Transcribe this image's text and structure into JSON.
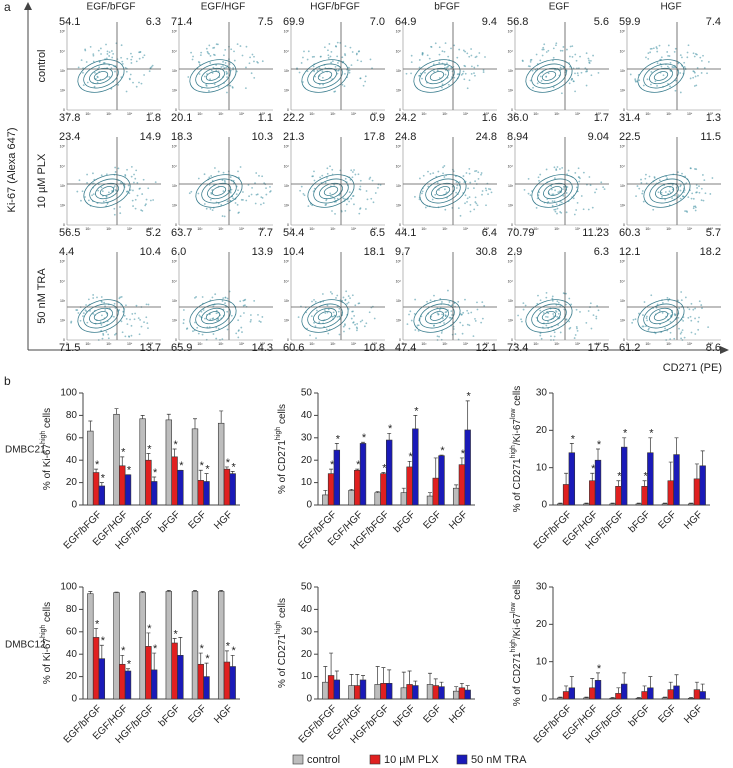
{
  "panels": [
    "a",
    "b"
  ],
  "significance_mark": "*",
  "panel_rows": [
    "DMBC21",
    "DMBC12"
  ],
  "legend": [
    {
      "name": "control",
      "color": "#bdbdbd"
    },
    {
      "name": "10 µM PLX",
      "color": "#e02020"
    },
    {
      "name": "50 nM TRA",
      "color": "#1a1ab8"
    }
  ],
  "flow": {
    "y_label": "Ki-67 (Alexa 647)",
    "x_label": "CD271 (PE)",
    "tick_labels": [
      "0",
      "10²",
      "10³",
      "10⁴",
      "10⁵"
    ],
    "columns": [
      "EGF/bFGF",
      "EGF/HGF",
      "HGF/bFGF",
      "bFGF",
      "EGF",
      "HGF"
    ],
    "rows": [
      {
        "label": "control",
        "quadrants": [
          [
            "54.1",
            "6.3",
            "37.8",
            "1.8"
          ],
          [
            "71.4",
            "7.5",
            "20.1",
            "1.1"
          ],
          [
            "69.9",
            "7.0",
            "22.2",
            "0.9"
          ],
          [
            "64.9",
            "9.4",
            "24.2",
            "1.6"
          ],
          [
            "56.8",
            "5.6",
            "36.0",
            "1.7"
          ],
          [
            "59.9",
            "7.4",
            "31.4",
            "1.3"
          ]
        ]
      },
      {
        "label": "10 µM PLX",
        "quadrants": [
          [
            "23.4",
            "14.9",
            "56.5",
            "5.2"
          ],
          [
            "18.3",
            "10.3",
            "63.7",
            "7.7"
          ],
          [
            "21.3",
            "17.8",
            "54.4",
            "6.5"
          ],
          [
            "24.8",
            "24.8",
            "44.1",
            "6.4"
          ],
          [
            "8.94",
            "9.04",
            "70.79",
            "11.23"
          ],
          [
            "22.5",
            "11.5",
            "60.3",
            "5.7"
          ]
        ]
      },
      {
        "label": "50 nM TRA",
        "quadrants": [
          [
            "4.4",
            "10.4",
            "71.5",
            "13.7"
          ],
          [
            "6.0",
            "13.9",
            "65.9",
            "14.3"
          ],
          [
            "10.4",
            "18.1",
            "60.6",
            "10.8"
          ],
          [
            "9.7",
            "30.8",
            "47.4",
            "12.1"
          ],
          [
            "2.9",
            "6.3",
            "73.4",
            "17.5"
          ],
          [
            "12.1",
            "18.2",
            "61.2",
            "8.6"
          ]
        ]
      }
    ]
  },
  "chart_data": [
    {
      "type": "bar",
      "ylabel": [
        {
          "text": "% of Ki-67"
        },
        {
          "text": "high",
          "sup": true
        },
        {
          "text": " cells"
        }
      ],
      "categories": [
        "EGF/bFGF",
        "EGF/HGF",
        "HGF/bFGF",
        "bFGF",
        "EGF",
        "HGF"
      ],
      "ylim": [
        0,
        100
      ],
      "yticks": [
        0,
        20,
        40,
        60,
        80,
        100
      ],
      "series": [
        {
          "values": [
            66,
            81,
            77,
            76,
            68,
            73
          ],
          "errors": [
            9,
            5,
            3,
            5,
            9,
            11
          ],
          "significant": [
            false,
            false,
            false,
            false,
            false,
            false
          ]
        },
        {
          "values": [
            29,
            35,
            40,
            43,
            22,
            32
          ],
          "errors": [
            3,
            8,
            6,
            7,
            9,
            2
          ],
          "significant": [
            true,
            true,
            true,
            true,
            true,
            true
          ]
        },
        {
          "values": [
            17,
            27,
            21,
            31,
            21,
            28
          ],
          "errors": [
            3,
            0,
            4,
            0,
            7,
            2
          ],
          "significant": [
            true,
            true,
            true,
            true,
            true,
            true
          ]
        }
      ]
    },
    {
      "type": "bar",
      "ylabel": [
        {
          "text": "% of CD271"
        },
        {
          "text": "high",
          "sup": true
        },
        {
          "text": " cells"
        }
      ],
      "categories": [
        "EGF/bFGF",
        "EGF/HGF",
        "HGF/bFGF",
        "bFGF",
        "EGF",
        "HGF"
      ],
      "ylim": [
        0,
        50
      ],
      "yticks": [
        0,
        10,
        20,
        30,
        40,
        50
      ],
      "series": [
        {
          "values": [
            4.5,
            6.5,
            5.5,
            5.5,
            4,
            7.5
          ],
          "errors": [
            2,
            0.5,
            0.5,
            2,
            1.5,
            1.5
          ],
          "significant": [
            false,
            false,
            false,
            false,
            false,
            false
          ]
        },
        {
          "values": [
            14,
            15.5,
            14,
            17,
            12,
            18
          ],
          "errors": [
            2,
            0.5,
            0.5,
            2.5,
            9,
            3
          ],
          "significant": [
            true,
            true,
            true,
            true,
            false,
            true
          ]
        },
        {
          "values": [
            24.5,
            27.5,
            29,
            34,
            22,
            33.5
          ],
          "errors": [
            3,
            0.5,
            3,
            6,
            0.3,
            13
          ],
          "significant": [
            true,
            true,
            true,
            true,
            true,
            true
          ]
        }
      ]
    },
    {
      "type": "bar",
      "ylabel": [
        {
          "text": "% of CD271"
        },
        {
          "text": "high",
          "sup": true
        },
        {
          "text": "/Ki-67"
        },
        {
          "text": "low",
          "sup": true
        },
        {
          "text": " cells"
        }
      ],
      "categories": [
        "EGF/bFGF",
        "EGF/HGF",
        "HGF/bFGF",
        "bFGF",
        "EGF",
        "HGF"
      ],
      "ylim": [
        0,
        30
      ],
      "yticks": [
        0,
        10,
        20,
        30
      ],
      "series": [
        {
          "values": [
            0.3,
            0.3,
            0.3,
            0.3,
            0.3,
            0.3
          ],
          "errors": [
            0.2,
            0.2,
            0.2,
            0.2,
            0.2,
            0.2
          ],
          "significant": [
            false,
            false,
            false,
            false,
            false,
            false
          ]
        },
        {
          "values": [
            5.5,
            6.5,
            5,
            5,
            6.5,
            7
          ],
          "errors": [
            3,
            2,
            1.5,
            1.5,
            5,
            4
          ],
          "significant": [
            false,
            true,
            true,
            true,
            false,
            false
          ]
        },
        {
          "values": [
            14,
            12,
            15.5,
            14,
            13.5,
            10.5
          ],
          "errors": [
            2.5,
            3,
            2.5,
            4,
            4.5,
            4
          ],
          "significant": [
            true,
            true,
            true,
            true,
            false,
            false
          ]
        }
      ]
    },
    {
      "type": "bar",
      "ylabel": [
        {
          "text": "% of Ki-67"
        },
        {
          "text": "high",
          "sup": true
        },
        {
          "text": " cells"
        }
      ],
      "categories": [
        "EGF/bFGF",
        "EGF/HGF",
        "HGF/bFGF",
        "bFGF",
        "EGF",
        "HGF"
      ],
      "ylim": [
        0,
        100
      ],
      "yticks": [
        0,
        20,
        40,
        60,
        80,
        100
      ],
      "series": [
        {
          "values": [
            94,
            95,
            95,
            96,
            96,
            96
          ],
          "errors": [
            2,
            0.5,
            1,
            1,
            1,
            1
          ],
          "significant": [
            false,
            false,
            false,
            false,
            false,
            false
          ]
        },
        {
          "values": [
            55,
            31,
            47,
            50,
            31,
            33
          ],
          "errors": [
            8,
            8,
            12,
            4,
            10,
            10
          ],
          "significant": [
            true,
            true,
            true,
            true,
            true,
            true
          ]
        },
        {
          "values": [
            36,
            25,
            26,
            39,
            20,
            29
          ],
          "errors": [
            12,
            2,
            15,
            16,
            12,
            10
          ],
          "significant": [
            true,
            true,
            true,
            false,
            true,
            true
          ]
        }
      ]
    },
    {
      "type": "bar",
      "ylabel": [
        {
          "text": "% of CD271"
        },
        {
          "text": "high",
          "sup": true
        },
        {
          "text": " cells"
        }
      ],
      "categories": [
        "EGF/bFGF",
        "EGF/HGF",
        "HGF/bFGF",
        "bFGF",
        "EGF",
        "HGF"
      ],
      "ylim": [
        0,
        50
      ],
      "yticks": [
        0,
        10,
        20,
        30,
        40,
        50
      ],
      "series": [
        {
          "values": [
            7.5,
            6,
            6.5,
            5,
            6.5,
            3.5
          ],
          "errors": [
            7,
            5,
            8,
            7,
            5,
            2
          ],
          "significant": [
            false,
            false,
            false,
            false,
            false,
            false
          ]
        },
        {
          "values": [
            10.5,
            6,
            7,
            6.5,
            6,
            5
          ],
          "errors": [
            10,
            5,
            7,
            6,
            3,
            2
          ],
          "significant": [
            false,
            false,
            false,
            false,
            false,
            false
          ]
        },
        {
          "values": [
            8.5,
            8.5,
            7,
            6,
            5.5,
            4
          ],
          "errors": [
            4,
            2,
            6,
            2,
            2,
            2
          ],
          "significant": [
            false,
            false,
            false,
            false,
            false,
            false
          ]
        }
      ]
    },
    {
      "type": "bar",
      "ylabel": [
        {
          "text": "% of CD271"
        },
        {
          "text": "high",
          "sup": true
        },
        {
          "text": "/Ki-67"
        },
        {
          "text": "low",
          "sup": true
        },
        {
          "text": " cells"
        }
      ],
      "categories": [
        "EGF/bFGF",
        "EGF/HGF",
        "HGF/bFGF",
        "bFGF",
        "EGF",
        "HGF"
      ],
      "ylim": [
        0,
        30
      ],
      "yticks": [
        0,
        10,
        20,
        30
      ],
      "series": [
        {
          "values": [
            0.3,
            0.3,
            0.2,
            0.2,
            0.3,
            0.2
          ],
          "errors": [
            0.2,
            0.2,
            0.2,
            0.2,
            0.2,
            0.2
          ],
          "significant": [
            false,
            false,
            false,
            false,
            false,
            false
          ]
        },
        {
          "values": [
            2,
            3,
            1.5,
            2,
            2.5,
            2.5
          ],
          "errors": [
            1.5,
            2.5,
            1.5,
            1.5,
            2,
            2
          ],
          "significant": [
            false,
            false,
            false,
            false,
            false,
            false
          ]
        },
        {
          "values": [
            3,
            5,
            4,
            3,
            3.5,
            2
          ],
          "errors": [
            3,
            2,
            3,
            3,
            3,
            2
          ],
          "significant": [
            false,
            true,
            false,
            false,
            false,
            false
          ]
        }
      ]
    }
  ]
}
